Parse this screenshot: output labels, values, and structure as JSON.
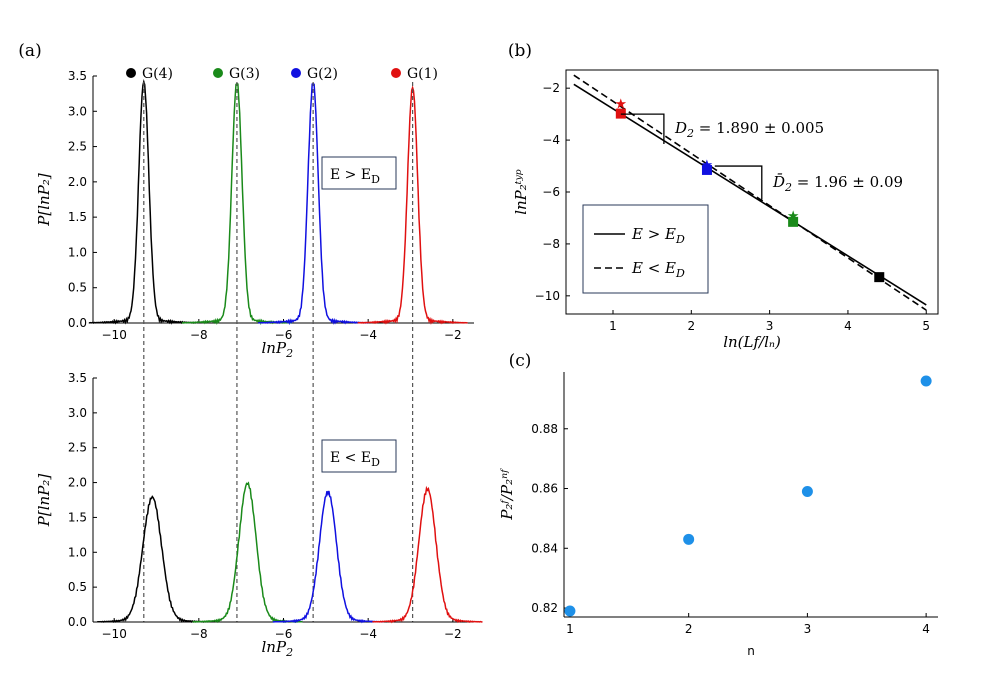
{
  "chart_data": [
    {
      "panel": "(a)",
      "type": "line",
      "subtitle": "E > E_D",
      "box_label": {
        "main": "E > E",
        "sub": "D"
      },
      "xlabel": "lnP2",
      "ylabel": "P[lnP2]",
      "xlim": [
        -10.5,
        -1.5
      ],
      "ylim": [
        0,
        3.5
      ],
      "xticks": [
        -10,
        -8,
        -6,
        -4,
        -2
      ],
      "yticks": [
        0.0,
        0.5,
        1.0,
        1.5,
        2.0,
        2.5,
        3.0,
        3.5
      ],
      "legend": [
        {
          "label": "G(4)",
          "color": "#000000"
        },
        {
          "label": "G(3)",
          "color": "#1a8a1a"
        },
        {
          "label": "G(2)",
          "color": "#1010e0"
        },
        {
          "label": "G(1)",
          "color": "#e01010"
        }
      ],
      "series": [
        {
          "name": "G(4)",
          "color": "#000000",
          "center": -9.3,
          "peak": 3.38,
          "width": 0.12
        },
        {
          "name": "G(3)",
          "color": "#1a8a1a",
          "center": -7.1,
          "peak": 3.38,
          "width": 0.12
        },
        {
          "name": "G(2)",
          "color": "#1010e0",
          "center": -5.3,
          "peak": 3.38,
          "width": 0.12
        },
        {
          "name": "G(1)",
          "color": "#e01010",
          "center": -2.95,
          "peak": 3.3,
          "width": 0.12
        }
      ],
      "vlines": [
        -9.3,
        -7.1,
        -5.3,
        -2.95
      ]
    },
    {
      "panel": "",
      "type": "line",
      "subtitle": "E < E_D",
      "box_label": {
        "main": "E < E",
        "sub": "D"
      },
      "xlabel": "lnP2",
      "ylabel": "P[lnP2]",
      "xlim": [
        -10.5,
        -1.5
      ],
      "ylim": [
        0,
        3.5
      ],
      "xticks": [
        -10,
        -8,
        -6,
        -4,
        -2
      ],
      "yticks": [
        0.0,
        0.5,
        1.0,
        1.5,
        2.0,
        2.5,
        3.0,
        3.5
      ],
      "series": [
        {
          "name": "G(4)",
          "color": "#000000",
          "center": -9.1,
          "peak": 1.75,
          "width": 0.22
        },
        {
          "name": "G(3)",
          "color": "#1a8a1a",
          "center": -6.85,
          "peak": 1.95,
          "width": 0.2
        },
        {
          "name": "G(2)",
          "color": "#1010e0",
          "center": -4.95,
          "peak": 1.83,
          "width": 0.2
        },
        {
          "name": "G(1)",
          "color": "#e01010",
          "center": -2.6,
          "peak": 1.87,
          "width": 0.2
        }
      ],
      "vlines": [
        -9.3,
        -7.1,
        -5.3,
        -2.95
      ]
    },
    {
      "panel": "(b)",
      "type": "scatter",
      "xlabel": "ln(Lf/ln)",
      "ylabel": "lnP2^typ",
      "xlim": [
        0.4,
        5.15
      ],
      "ylim": [
        -10.7,
        -1.3
      ],
      "xticks": [
        1,
        2,
        3,
        4,
        5
      ],
      "yticks": [
        -2,
        -4,
        -6,
        -8,
        -10
      ],
      "points_above": [
        {
          "x": 1.1,
          "y": -2.98,
          "color": "#e01010"
        },
        {
          "x": 2.2,
          "y": -5.15,
          "color": "#1010e0"
        },
        {
          "x": 3.3,
          "y": -7.15,
          "color": "#1a8a1a"
        },
        {
          "x": 4.4,
          "y": -9.28,
          "color": "#000000"
        }
      ],
      "points_below": [
        {
          "x": 1.1,
          "y": -2.6,
          "color": "#e01010"
        },
        {
          "x": 2.2,
          "y": -4.95,
          "color": "#1010e0"
        },
        {
          "x": 3.3,
          "y": -6.9,
          "color": "#1a8a1a"
        }
      ],
      "fit_above": {
        "x": [
          0.5,
          5.0
        ],
        "y": [
          -1.85,
          -10.35
        ]
      },
      "fit_below": {
        "x": [
          0.5,
          5.0
        ],
        "y": [
          -1.5,
          -10.55
        ]
      },
      "annotations": [
        {
          "base": "D",
          "sub": "2",
          "text": " = 1.890 ± 0.005"
        },
        {
          "base": "D̄",
          "sub": "2",
          "text": " = 1.96 ± 0.09"
        }
      ],
      "legend": [
        {
          "style": "solid",
          "label": "E > E",
          "sub": "D"
        },
        {
          "style": "dashed",
          "label": "E < E",
          "sub": "D"
        }
      ]
    },
    {
      "panel": "(c)",
      "type": "scatter",
      "xlabel": "n",
      "ylabel": "P2^f / P2^nf",
      "xlim": [
        0.95,
        4.1
      ],
      "ylim": [
        0.817,
        0.899
      ],
      "xticks": [
        1,
        2,
        3,
        4
      ],
      "yticks": [
        0.82,
        0.84,
        0.86,
        0.88
      ],
      "x": [
        1,
        2,
        3,
        4
      ],
      "y": [
        0.819,
        0.843,
        0.859,
        0.896
      ],
      "color": "#1e90e8"
    }
  ]
}
